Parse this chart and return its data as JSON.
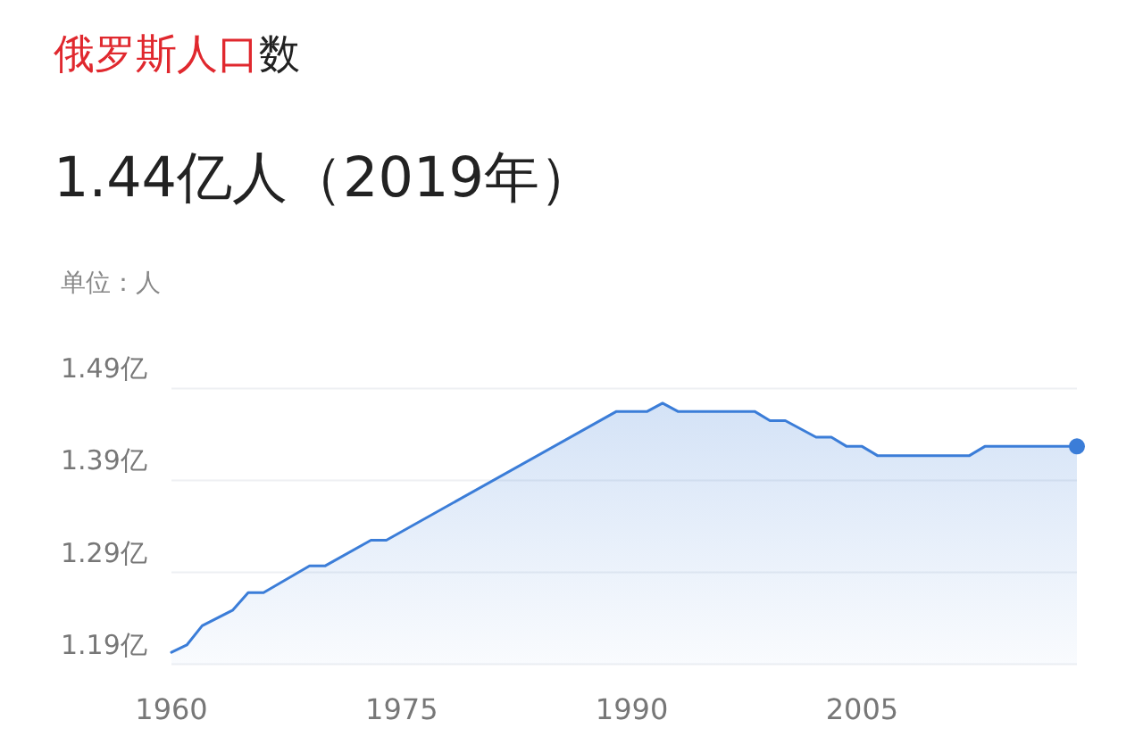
{
  "chart_data": {
    "type": "area",
    "title": "俄罗斯人口数",
    "subtitle": "1.44亿人（2019年）",
    "annotations": [
      "单位：人"
    ],
    "x": [
      1960,
      1961,
      1962,
      1964,
      1965,
      1966,
      1969,
      1970,
      1973,
      1974,
      1989,
      1991,
      1992,
      1993,
      1998,
      1999,
      2000,
      2002,
      2003,
      2004,
      2005,
      2006,
      2012,
      2013,
      2019
    ],
    "series": [
      {
        "color": "#3b7dd8",
        "values": [
          1.203,
          1.211,
          1.232,
          1.249,
          1.268,
          1.268,
          1.297,
          1.297,
          1.325,
          1.325,
          1.465,
          1.465,
          1.474,
          1.465,
          1.465,
          1.455,
          1.455,
          1.437,
          1.437,
          1.427,
          1.427,
          1.417,
          1.417,
          1.427,
          1.427
        ]
      }
    ],
    "xlim": [
      1960,
      2019
    ],
    "xticks": [
      1960,
      1975,
      1990,
      2005
    ],
    "ylim": [
      1.19,
      1.49
    ],
    "yticks": [
      {
        "value": 1.19,
        "label": "1.19亿"
      },
      {
        "value": 1.29,
        "label": "1.29亿"
      },
      {
        "value": 1.39,
        "label": "1.39亿"
      },
      {
        "value": 1.49,
        "label": "1.49亿"
      }
    ],
    "grid": "y"
  }
}
